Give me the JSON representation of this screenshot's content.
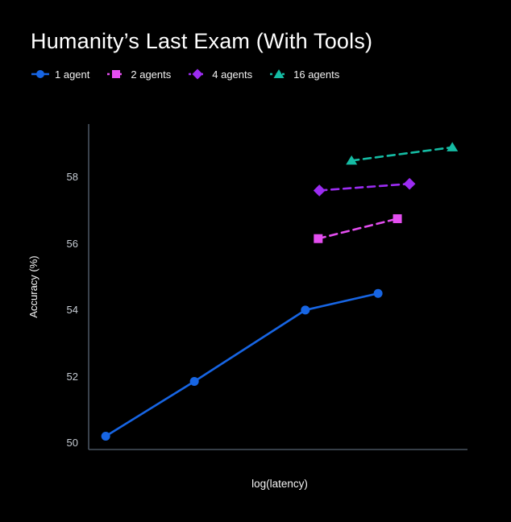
{
  "title": "Humanity’s Last Exam (With Tools)",
  "legend": [
    {
      "label": "1 agent",
      "color": "#1765e3",
      "marker": "circle",
      "line_style": "solid"
    },
    {
      "label": "2 agents",
      "color": "#e44ef0",
      "marker": "square",
      "line_style": "dashed"
    },
    {
      "label": "4 agents",
      "color": "#9c2cf2",
      "marker": "diamond",
      "line_style": "dashed"
    },
    {
      "label": "16 agents",
      "color": "#15bca4",
      "marker": "triangle",
      "line_style": "dashed"
    }
  ],
  "axes": {
    "ylabel": "Accuracy (%)",
    "xlabel": "log(latency)",
    "ytick_labels": [
      "50",
      "52",
      "54",
      "56",
      "58"
    ]
  },
  "colors": {
    "background": "#000000",
    "axis_line": "#49525f",
    "tick_label": "#c6ccd4",
    "text": "#ffffff"
  },
  "chart_data": {
    "type": "line",
    "title": "Humanity’s Last Exam (With Tools)",
    "xlabel": "log(latency)",
    "ylabel": "Accuracy (%)",
    "yticks": [
      50,
      52,
      54,
      56,
      58
    ],
    "ylim": [
      49.8,
      59.6
    ],
    "xlim": [
      0,
      1
    ],
    "grid": false,
    "legend_position": "top-left",
    "x_tick_labels": [],
    "series": [
      {
        "name": "1 agent",
        "color": "#1765e3",
        "marker": "circle",
        "line_style": "solid",
        "x": [
          0.045,
          0.279,
          0.572,
          0.764
        ],
        "y": [
          50.2,
          51.85,
          54.0,
          54.5
        ]
      },
      {
        "name": "2 agents",
        "color": "#e44ef0",
        "marker": "square",
        "line_style": "dashed",
        "x": [
          0.606,
          0.815
        ],
        "y": [
          56.15,
          56.75
        ]
      },
      {
        "name": "4 agents",
        "color": "#9c2cf2",
        "marker": "diamond",
        "line_style": "dashed",
        "x": [
          0.609,
          0.847
        ],
        "y": [
          57.6,
          57.8
        ]
      },
      {
        "name": "16 agents",
        "color": "#15bca4",
        "marker": "triangle",
        "line_style": "dashed",
        "x": [
          0.694,
          0.96
        ],
        "y": [
          58.5,
          58.9
        ]
      }
    ]
  }
}
